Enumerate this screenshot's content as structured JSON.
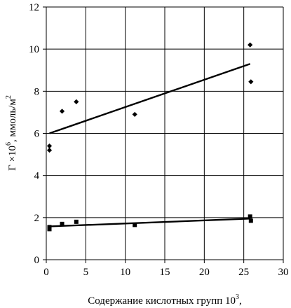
{
  "chart_data": {
    "type": "scatter",
    "title": "",
    "xlabel": "Содержание кислотных групп 10",
    "xlabel_sup": "3",
    "xlabel_tail": ",",
    "ylabel": "Г ×10",
    "ylabel_sup": "6",
    "ylabel_tail": ", ммоль/м",
    "ylabel_sup2": "2",
    "xlim": [
      0,
      30
    ],
    "ylim": [
      0,
      12
    ],
    "x_ticks": [
      0,
      5,
      10,
      15,
      20,
      25,
      30
    ],
    "y_ticks": [
      0,
      2,
      4,
      6,
      8,
      10,
      12
    ],
    "grid": true,
    "legend": "none",
    "series": [
      {
        "marker": "diamond",
        "points": [
          {
            "x": 0.4,
            "y": 5.4
          },
          {
            "x": 0.4,
            "y": 5.2
          },
          {
            "x": 2.0,
            "y": 7.05
          },
          {
            "x": 3.8,
            "y": 7.5
          },
          {
            "x": 11.2,
            "y": 6.9
          },
          {
            "x": 25.8,
            "y": 10.2
          },
          {
            "x": 25.9,
            "y": 8.45
          }
        ],
        "trend": {
          "x": [
            0.4,
            25.8
          ],
          "y": [
            6.0,
            9.3
          ]
        }
      },
      {
        "marker": "square",
        "points": [
          {
            "x": 0.4,
            "y": 1.55
          },
          {
            "x": 0.4,
            "y": 1.45
          },
          {
            "x": 2.0,
            "y": 1.7
          },
          {
            "x": 3.8,
            "y": 1.8
          },
          {
            "x": 11.2,
            "y": 1.65
          },
          {
            "x": 25.8,
            "y": 2.05
          },
          {
            "x": 25.9,
            "y": 1.85
          }
        ],
        "trend": {
          "x": [
            0.4,
            25.8
          ],
          "y": [
            1.58,
            1.95
          ]
        }
      }
    ]
  }
}
